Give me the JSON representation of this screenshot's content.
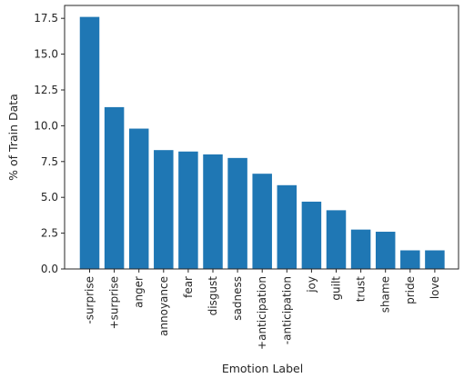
{
  "chart_data": {
    "type": "bar",
    "categories": [
      "-surprise",
      "+surprise",
      "anger",
      "annoyance",
      "fear",
      "disgust",
      "sadness",
      "+anticipation",
      "-anticipation",
      "joy",
      "guilt",
      "trust",
      "shame",
      "pride",
      "love"
    ],
    "values": [
      17.6,
      11.3,
      9.8,
      8.3,
      8.2,
      8.0,
      7.75,
      6.65,
      5.85,
      4.7,
      4.1,
      2.75,
      2.6,
      1.3,
      1.3
    ],
    "xlabel": "Emotion Label",
    "ylabel": "% of Train Data",
    "ylim": [
      0,
      18.4
    ],
    "yticks": [
      "0.0",
      "2.5",
      "5.0",
      "7.5",
      "10.0",
      "12.5",
      "15.0",
      "17.5"
    ],
    "bar_color": "#1f77b4",
    "grid": false
  }
}
